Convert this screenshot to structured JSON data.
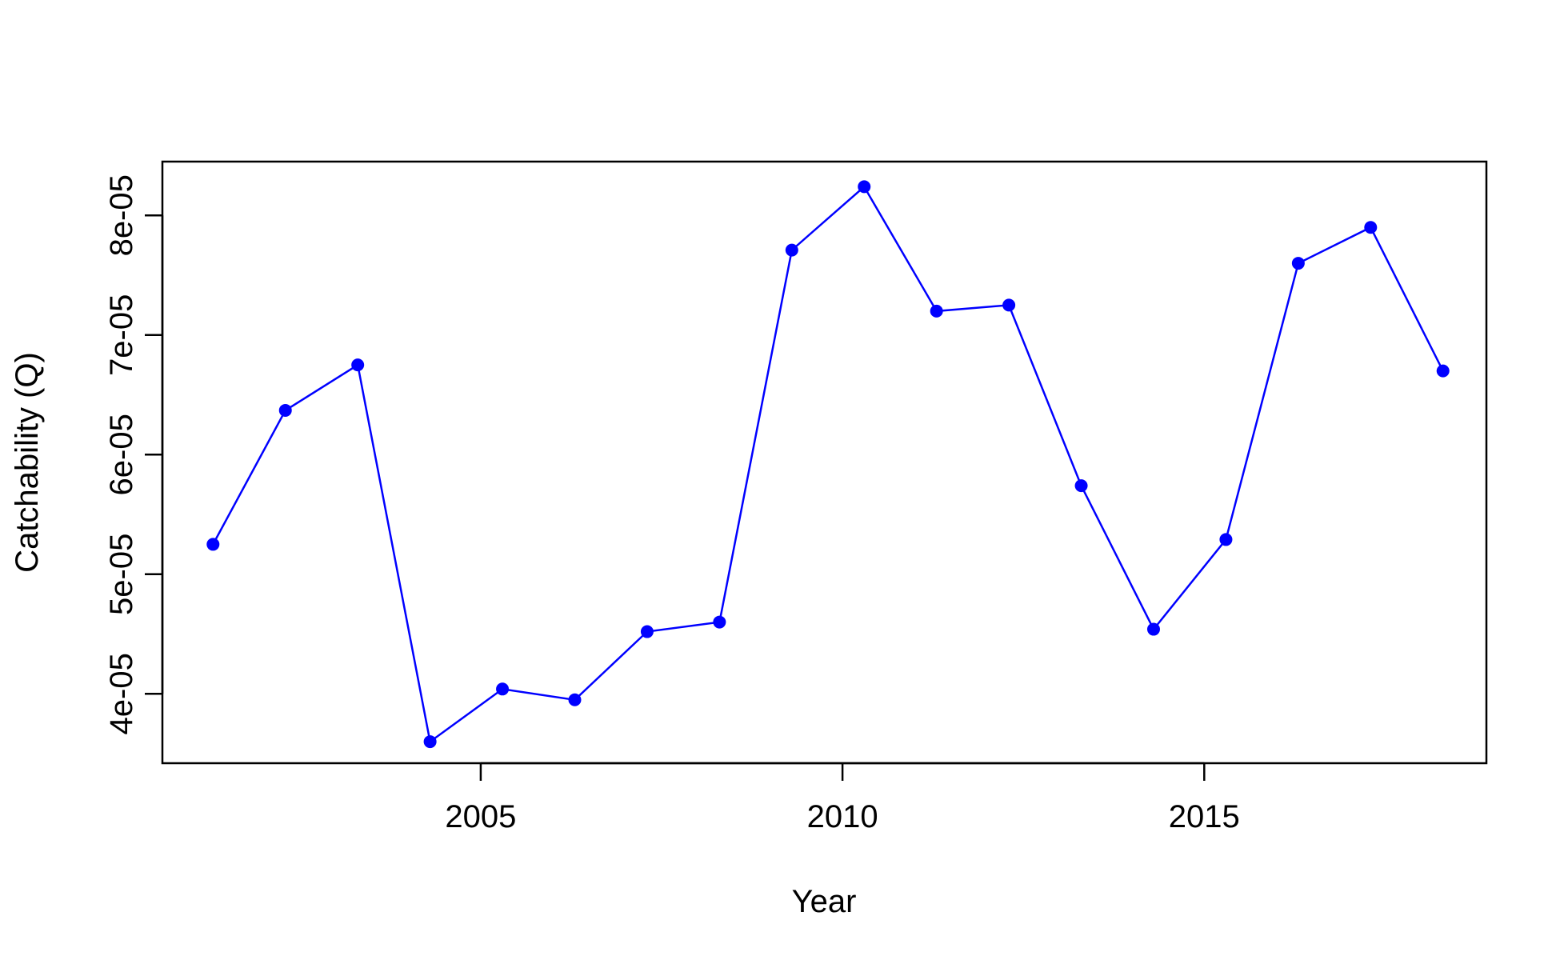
{
  "chart_data": {
    "type": "line",
    "title": "",
    "xlabel": "Year",
    "ylabel": "Catchability (Q)",
    "xlim": [
      2000.6,
      2018.9
    ],
    "ylim": [
      3.42e-05,
      8.45e-05
    ],
    "grid": false,
    "x_ticks": [
      2005,
      2010,
      2015
    ],
    "x_tick_labels": [
      "2005",
      "2010",
      "2015"
    ],
    "y_ticks": [
      4e-05,
      5e-05,
      6e-05,
      7e-05,
      8e-05
    ],
    "y_tick_labels": [
      "4e-05",
      "5e-05",
      "6e-05",
      "7e-05",
      "8e-05"
    ],
    "series": [
      {
        "color": "#0000ff",
        "marker": "filled-circle",
        "x": [
          2001.3,
          2002.3,
          2003.3,
          2004.3,
          2005.3,
          2006.3,
          2007.3,
          2008.3,
          2009.3,
          2010.3,
          2011.3,
          2012.3,
          2013.3,
          2014.3,
          2015.3,
          2016.3,
          2017.3,
          2018.3
        ],
        "y": [
          5.25e-05,
          6.37e-05,
          6.75e-05,
          3.6e-05,
          4.04e-05,
          3.95e-05,
          4.52e-05,
          4.6e-05,
          7.71e-05,
          8.24e-05,
          7.2e-05,
          7.25e-05,
          5.74e-05,
          4.54e-05,
          5.29e-05,
          7.6e-05,
          7.9e-05,
          6.7e-05
        ]
      }
    ]
  }
}
